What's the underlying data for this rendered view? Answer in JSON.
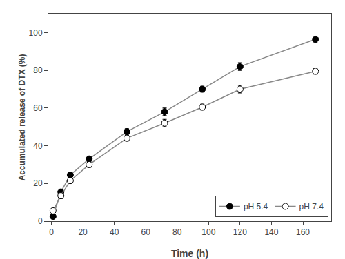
{
  "chart_data": {
    "type": "line",
    "xlabel": "Time (h)",
    "ylabel": "Accumulated release of DTX (%)",
    "x": [
      1,
      6,
      12,
      24,
      48,
      72,
      96,
      120,
      168
    ],
    "series": [
      {
        "name": "pH 5.4",
        "color": "#888888",
        "marker": "filled",
        "line_style": "solid",
        "values": [
          2.5,
          15.5,
          24.5,
          33.0,
          47.5,
          58.0,
          70.0,
          82.0,
          96.5
        ],
        "yerr": [
          0.5,
          1.5,
          1.5,
          1.5,
          1.5,
          2.0,
          1.5,
          2.0,
          1.5
        ]
      },
      {
        "name": "pH 7.4",
        "color": "#888888",
        "marker": "open",
        "line_style": "solid",
        "values": [
          5.5,
          13.5,
          21.5,
          30.0,
          44.0,
          52.0,
          60.5,
          70.0,
          79.5
        ],
        "yerr": [
          0.5,
          1.5,
          1.5,
          1.5,
          1.5,
          2.0,
          1.5,
          2.0,
          1.5
        ]
      }
    ],
    "xlim": [
      -2,
      178
    ],
    "xticks": [
      0,
      20,
      40,
      60,
      80,
      100,
      120,
      140,
      160
    ],
    "ylim": [
      0,
      110
    ],
    "yticks": [
      0,
      20,
      40,
      60,
      80,
      100
    ],
    "grid": false,
    "legend": "lower right"
  }
}
